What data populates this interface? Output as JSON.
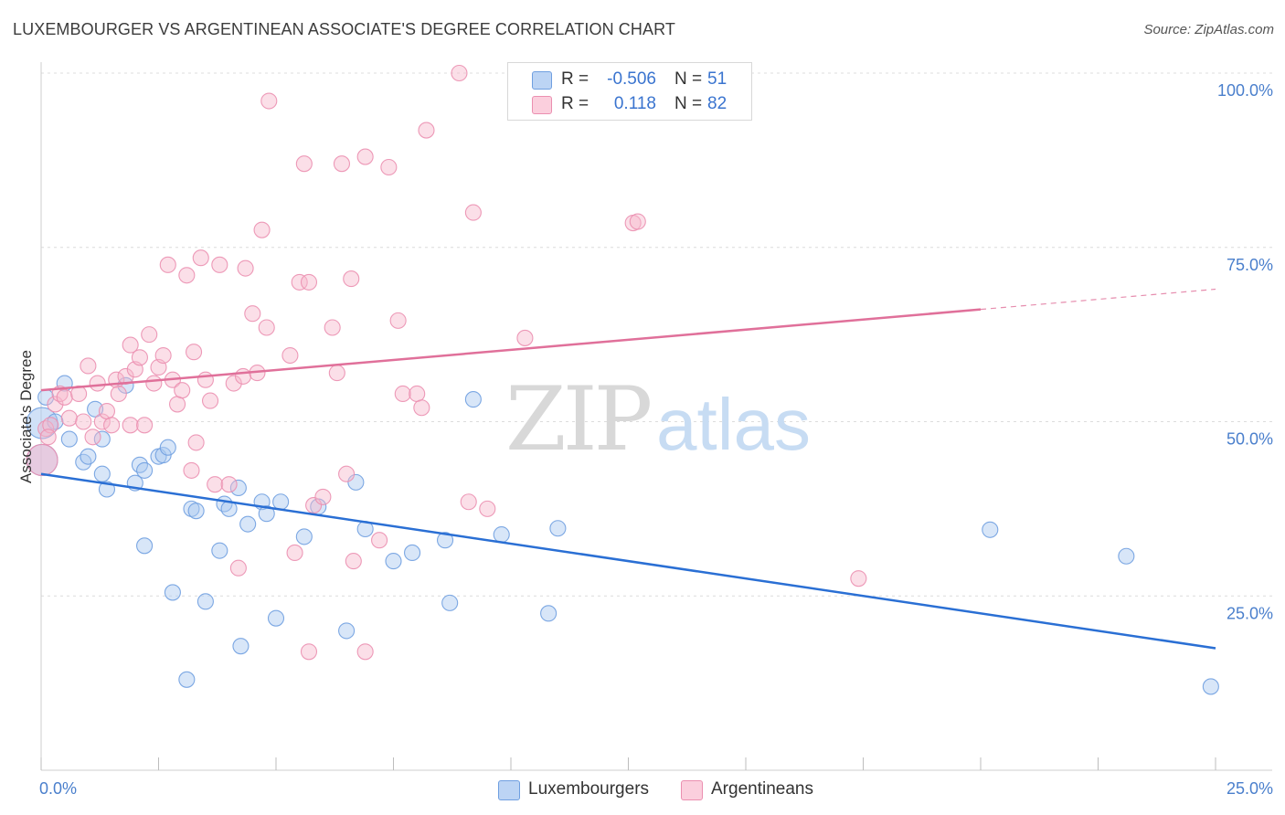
{
  "title": "LUXEMBOURGER VS ARGENTINEAN ASSOCIATE'S DEGREE CORRELATION CHART",
  "source": "Source: ZipAtlas.com",
  "watermark": {
    "zip": "ZIP",
    "atlas": "atlas"
  },
  "colors": {
    "blue_fill": "#a9c8f0",
    "blue_stroke": "#6f9fe0",
    "blue_line": "#2a6fd4",
    "pink_fill": "#f7b9cd",
    "pink_stroke": "#eb8fb0",
    "pink_line": "#e0709a",
    "grid": "#dcdcdc",
    "tick_text": "#4a7fcc"
  },
  "legend_top": [
    {
      "r_label": "R =",
      "r_value": "-0.506",
      "n_label": "N =",
      "n_value": "51"
    },
    {
      "r_label": "R =",
      "r_value": "0.118",
      "n_label": "N =",
      "n_value": "82"
    }
  ],
  "legend_bottom": [
    "Luxembourgers",
    "Argentineans"
  ],
  "chart_data": {
    "type": "scatter",
    "xlabel": "",
    "ylabel": "Associate's Degree",
    "x_tick_labels": [
      "0.0%",
      "25.0%"
    ],
    "y_tick_labels": [
      "100.0%",
      "75.0%",
      "50.0%",
      "25.0%"
    ],
    "xlim": [
      0,
      25
    ],
    "ylim": [
      0,
      102
    ],
    "grid": true,
    "legend_placement": "top-center",
    "series": [
      {
        "name": "Luxembourgers",
        "color": "blue",
        "r": -0.506,
        "n": 51,
        "trend": {
          "x0": 0,
          "y0": 42.5,
          "x1": 25,
          "y1": 17.5,
          "dash_from": null
        },
        "points": [
          [
            0.02,
            49.8
          ],
          [
            0.1,
            53.5
          ],
          [
            0.3,
            50.0
          ],
          [
            0.5,
            55.5
          ],
          [
            0.6,
            47.5
          ],
          [
            0.9,
            44.2
          ],
          [
            1.0,
            45.0
          ],
          [
            1.15,
            51.8
          ],
          [
            1.3,
            47.5
          ],
          [
            1.3,
            42.5
          ],
          [
            1.4,
            40.3
          ],
          [
            1.8,
            55.2
          ],
          [
            2.0,
            41.2
          ],
          [
            2.1,
            43.8
          ],
          [
            2.2,
            43.0
          ],
          [
            2.5,
            45.0
          ],
          [
            2.6,
            45.2
          ],
          [
            2.7,
            46.3
          ],
          [
            2.2,
            32.2
          ],
          [
            2.8,
            25.5
          ],
          [
            3.1,
            13.0
          ],
          [
            3.2,
            37.5
          ],
          [
            3.3,
            37.2
          ],
          [
            3.5,
            24.2
          ],
          [
            3.8,
            31.5
          ],
          [
            3.9,
            38.2
          ],
          [
            4.0,
            37.5
          ],
          [
            4.2,
            40.5
          ],
          [
            4.25,
            17.8
          ],
          [
            4.4,
            35.3
          ],
          [
            4.7,
            38.5
          ],
          [
            4.8,
            36.8
          ],
          [
            5.0,
            21.8
          ],
          [
            5.1,
            38.5
          ],
          [
            5.6,
            33.5
          ],
          [
            5.9,
            37.8
          ],
          [
            6.5,
            20.0
          ],
          [
            6.7,
            41.3
          ],
          [
            6.9,
            34.6
          ],
          [
            7.5,
            30.0
          ],
          [
            7.9,
            31.2
          ],
          [
            8.6,
            33.0
          ],
          [
            8.7,
            24.0
          ],
          [
            9.2,
            53.2
          ],
          [
            9.8,
            33.8
          ],
          [
            10.8,
            22.5
          ],
          [
            11.0,
            34.7
          ],
          [
            20.2,
            34.5
          ],
          [
            23.1,
            30.7
          ],
          [
            24.9,
            12.0
          ],
          [
            0.02,
            44.5
          ]
        ]
      },
      {
        "name": "Argentineans",
        "color": "pink",
        "r": 0.118,
        "n": 82,
        "trend": {
          "x0": 0,
          "y0": 54.5,
          "x1": 25,
          "y1": 69.0,
          "dash_from": 20.0
        },
        "points": [
          [
            0.02,
            44.5
          ],
          [
            0.1,
            49.0
          ],
          [
            0.2,
            49.5
          ],
          [
            0.3,
            52.5
          ],
          [
            0.4,
            54.0
          ],
          [
            0.5,
            53.5
          ],
          [
            0.6,
            50.5
          ],
          [
            0.8,
            54.0
          ],
          [
            0.9,
            50.0
          ],
          [
            1.0,
            58.0
          ],
          [
            1.1,
            47.8
          ],
          [
            1.2,
            55.5
          ],
          [
            1.3,
            50.0
          ],
          [
            1.4,
            51.5
          ],
          [
            1.5,
            49.5
          ],
          [
            1.6,
            56.0
          ],
          [
            1.65,
            54.0
          ],
          [
            1.8,
            56.5
          ],
          [
            1.9,
            49.5
          ],
          [
            1.9,
            61.0
          ],
          [
            2.0,
            57.5
          ],
          [
            2.1,
            59.2
          ],
          [
            2.2,
            49.5
          ],
          [
            2.3,
            62.5
          ],
          [
            2.4,
            55.5
          ],
          [
            2.5,
            57.8
          ],
          [
            2.6,
            59.5
          ],
          [
            2.7,
            72.5
          ],
          [
            2.8,
            56.0
          ],
          [
            2.9,
            52.5
          ],
          [
            3.0,
            54.5
          ],
          [
            3.1,
            71.0
          ],
          [
            3.2,
            43.0
          ],
          [
            3.25,
            60.0
          ],
          [
            3.3,
            47.0
          ],
          [
            3.4,
            73.5
          ],
          [
            3.5,
            56.0
          ],
          [
            3.6,
            53.0
          ],
          [
            3.7,
            41.0
          ],
          [
            3.8,
            72.5
          ],
          [
            4.0,
            41.0
          ],
          [
            4.1,
            55.5
          ],
          [
            4.2,
            29.0
          ],
          [
            4.3,
            56.5
          ],
          [
            4.35,
            72.0
          ],
          [
            4.5,
            65.5
          ],
          [
            4.6,
            57.0
          ],
          [
            4.7,
            77.5
          ],
          [
            4.8,
            63.5
          ],
          [
            4.85,
            96.0
          ],
          [
            5.3,
            59.5
          ],
          [
            5.4,
            31.2
          ],
          [
            5.5,
            70.0
          ],
          [
            5.6,
            87.0
          ],
          [
            5.7,
            70.0
          ],
          [
            5.7,
            17.0
          ],
          [
            5.8,
            38.0
          ],
          [
            6.0,
            39.2
          ],
          [
            6.2,
            63.5
          ],
          [
            6.3,
            57.0
          ],
          [
            6.4,
            87.0
          ],
          [
            6.5,
            42.5
          ],
          [
            6.6,
            70.5
          ],
          [
            6.65,
            30.0
          ],
          [
            6.9,
            88.0
          ],
          [
            6.9,
            17.0
          ],
          [
            7.2,
            33.0
          ],
          [
            7.4,
            86.5
          ],
          [
            7.6,
            64.5
          ],
          [
            7.7,
            54.0
          ],
          [
            8.0,
            54.0
          ],
          [
            8.1,
            52.0
          ],
          [
            8.2,
            91.8
          ],
          [
            8.9,
            100.0
          ],
          [
            9.1,
            38.5
          ],
          [
            9.2,
            80.0
          ],
          [
            9.5,
            37.5
          ],
          [
            10.3,
            62.0
          ],
          [
            12.6,
            78.5
          ],
          [
            12.7,
            78.7
          ],
          [
            17.4,
            27.5
          ],
          [
            0.15,
            47.8
          ]
        ]
      }
    ]
  }
}
